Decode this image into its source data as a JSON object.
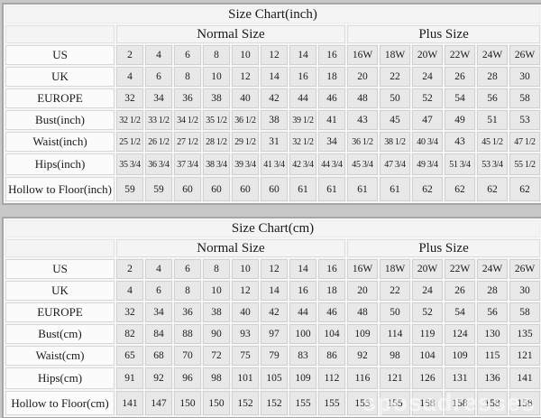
{
  "watermark": "sposadresses",
  "colors": {
    "page_bg": "#c8c8c8",
    "table_gutter": "#f6f6f6",
    "outer_border": "#a6a6a6",
    "header_bg": "#f4f4f4",
    "label_bg": "#fbfbfb",
    "cell_bg": "#e8e8e8",
    "border": "#cfcfcf",
    "text": "#1a1a1a",
    "watermark": "rgba(255,255,255,0.55)"
  },
  "tables": [
    {
      "title": "Size Chart(inch)",
      "normal_header": "Normal Size",
      "plus_header": "Plus Size",
      "rows": [
        {
          "label": "US",
          "normal": [
            "2",
            "4",
            "6",
            "8",
            "10",
            "12",
            "14",
            "16"
          ],
          "plus": [
            "16W",
            "18W",
            "20W",
            "22W",
            "24W",
            "26W"
          ]
        },
        {
          "label": "UK",
          "normal": [
            "4",
            "6",
            "8",
            "10",
            "12",
            "14",
            "16",
            "18"
          ],
          "plus": [
            "20",
            "22",
            "24",
            "26",
            "28",
            "30"
          ]
        },
        {
          "label": "EUROPE",
          "normal": [
            "32",
            "34",
            "36",
            "38",
            "40",
            "42",
            "44",
            "46"
          ],
          "plus": [
            "48",
            "50",
            "52",
            "54",
            "56",
            "58"
          ]
        },
        {
          "label": "Bust(inch)",
          "normal": [
            "32 1/2",
            "33 1/2",
            "34 1/2",
            "35 1/2",
            "36 1/2",
            "38",
            "39 1/2",
            "41"
          ],
          "plus": [
            "43",
            "45",
            "47",
            "49",
            "51",
            "53"
          ]
        },
        {
          "label": "Waist(inch)",
          "normal": [
            "25 1/2",
            "26 1/2",
            "27 1/2",
            "28 1/2",
            "29 1/2",
            "31",
            "32 1/2",
            "34"
          ],
          "plus": [
            "36 1/2",
            "38 1/2",
            "40 3/4",
            "43",
            "45 1/2",
            "47 1/2"
          ]
        },
        {
          "label": "Hips(inch)",
          "normal": [
            "35 3/4",
            "36 3/4",
            "37 3/4",
            "38 3/4",
            "39 3/4",
            "41 3/4",
            "42 3/4",
            "44 3/4"
          ],
          "plus": [
            "45 3/4",
            "47 3/4",
            "49 3/4",
            "51 3/4",
            "53 3/4",
            "55 1/2"
          ]
        },
        {
          "label": "Hollow to Floor(inch)",
          "normal": [
            "59",
            "59",
            "60",
            "60",
            "60",
            "60",
            "61",
            "61"
          ],
          "plus": [
            "61",
            "61",
            "62",
            "62",
            "62",
            "62"
          ]
        }
      ]
    },
    {
      "title": "Size Chart(cm)",
      "normal_header": "Normal Size",
      "plus_header": "Plus Size",
      "rows": [
        {
          "label": "US",
          "normal": [
            "2",
            "4",
            "6",
            "8",
            "10",
            "12",
            "14",
            "16"
          ],
          "plus": [
            "16W",
            "18W",
            "20W",
            "22W",
            "24W",
            "26W"
          ]
        },
        {
          "label": "UK",
          "normal": [
            "4",
            "6",
            "8",
            "10",
            "12",
            "14",
            "16",
            "18"
          ],
          "plus": [
            "20",
            "22",
            "24",
            "26",
            "28",
            "30"
          ]
        },
        {
          "label": "EUROPE",
          "normal": [
            "32",
            "34",
            "36",
            "38",
            "40",
            "42",
            "44",
            "46"
          ],
          "plus": [
            "48",
            "50",
            "52",
            "54",
            "56",
            "58"
          ]
        },
        {
          "label": "Bust(cm)",
          "normal": [
            "82",
            "84",
            "88",
            "90",
            "93",
            "97",
            "100",
            "104"
          ],
          "plus": [
            "109",
            "114",
            "119",
            "124",
            "130",
            "135"
          ]
        },
        {
          "label": "Waist(cm)",
          "normal": [
            "65",
            "68",
            "70",
            "72",
            "75",
            "79",
            "83",
            "86"
          ],
          "plus": [
            "92",
            "98",
            "104",
            "109",
            "115",
            "121"
          ]
        },
        {
          "label": "Hips(cm)",
          "normal": [
            "91",
            "92",
            "96",
            "98",
            "101",
            "105",
            "109",
            "112"
          ],
          "plus": [
            "116",
            "121",
            "126",
            "131",
            "136",
            "141"
          ]
        },
        {
          "label": "Hollow to Floor(cm)",
          "normal": [
            "141",
            "147",
            "150",
            "150",
            "152",
            "152",
            "155",
            "155"
          ],
          "plus": [
            "155",
            "155",
            "158",
            "158",
            "158",
            "158"
          ]
        }
      ]
    }
  ]
}
